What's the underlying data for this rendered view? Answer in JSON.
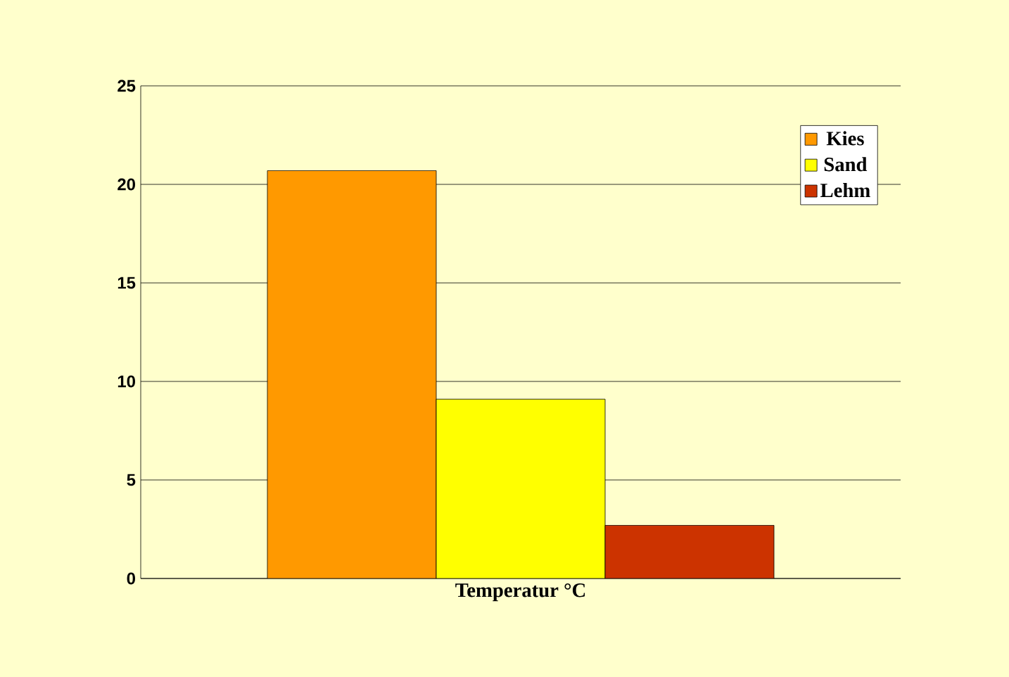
{
  "chart_data": {
    "type": "bar",
    "xlabel": "Temperatur °C",
    "categories": [
      null
    ],
    "series": [
      {
        "name": "Kies",
        "color": "#ff9900",
        "values": [
          20.7
        ]
      },
      {
        "name": "Sand",
        "color": "#ffff00",
        "values": [
          9.1
        ]
      },
      {
        "name": "Lehm",
        "color": "#cc3300",
        "values": [
          2.7
        ]
      }
    ],
    "ylim": [
      0,
      25
    ],
    "yticks": [
      0,
      5,
      10,
      15,
      20,
      25
    ],
    "grid": "y",
    "legend": "top right"
  }
}
